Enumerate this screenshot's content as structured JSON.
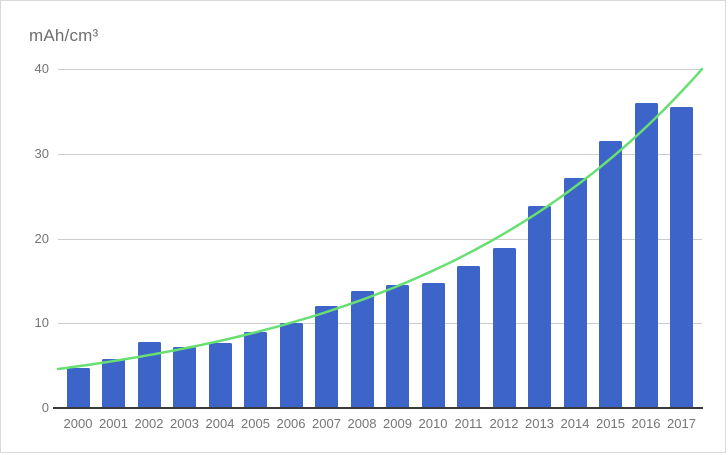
{
  "chart": {
    "title": "mAh/cm³"
  },
  "chart_data": {
    "type": "bar",
    "title": "mAh/cm³",
    "xlabel": "",
    "ylabel": "mAh/cm³",
    "categories": [
      "2000",
      "2001",
      "2002",
      "2003",
      "2004",
      "2005",
      "2006",
      "2007",
      "2008",
      "2009",
      "2010",
      "2011",
      "2012",
      "2013",
      "2014",
      "2015",
      "2016",
      "2017"
    ],
    "values": [
      4.7,
      5.8,
      7.8,
      7.2,
      7.7,
      9.0,
      10.0,
      12.0,
      13.8,
      14.5,
      14.8,
      16.8,
      18.9,
      23.8,
      27.1,
      31.5,
      36.0,
      35.5
    ],
    "ylim": [
      0,
      40
    ],
    "y_ticks": [
      0,
      10,
      20,
      30,
      40
    ],
    "grid": "horizontal",
    "legend_position": "none",
    "trendline": {
      "type": "exponential",
      "start_value": 4.6,
      "end_value": 40
    }
  },
  "colors": {
    "bar": "#3d64c9",
    "trendline": "#67df72",
    "gridline": "#cccccc",
    "baseline": "#3a3a3a",
    "tick_label": "#757575",
    "title": "#6e6e6e",
    "card_border": "#d9d9d9",
    "background": "#ffffff"
  }
}
